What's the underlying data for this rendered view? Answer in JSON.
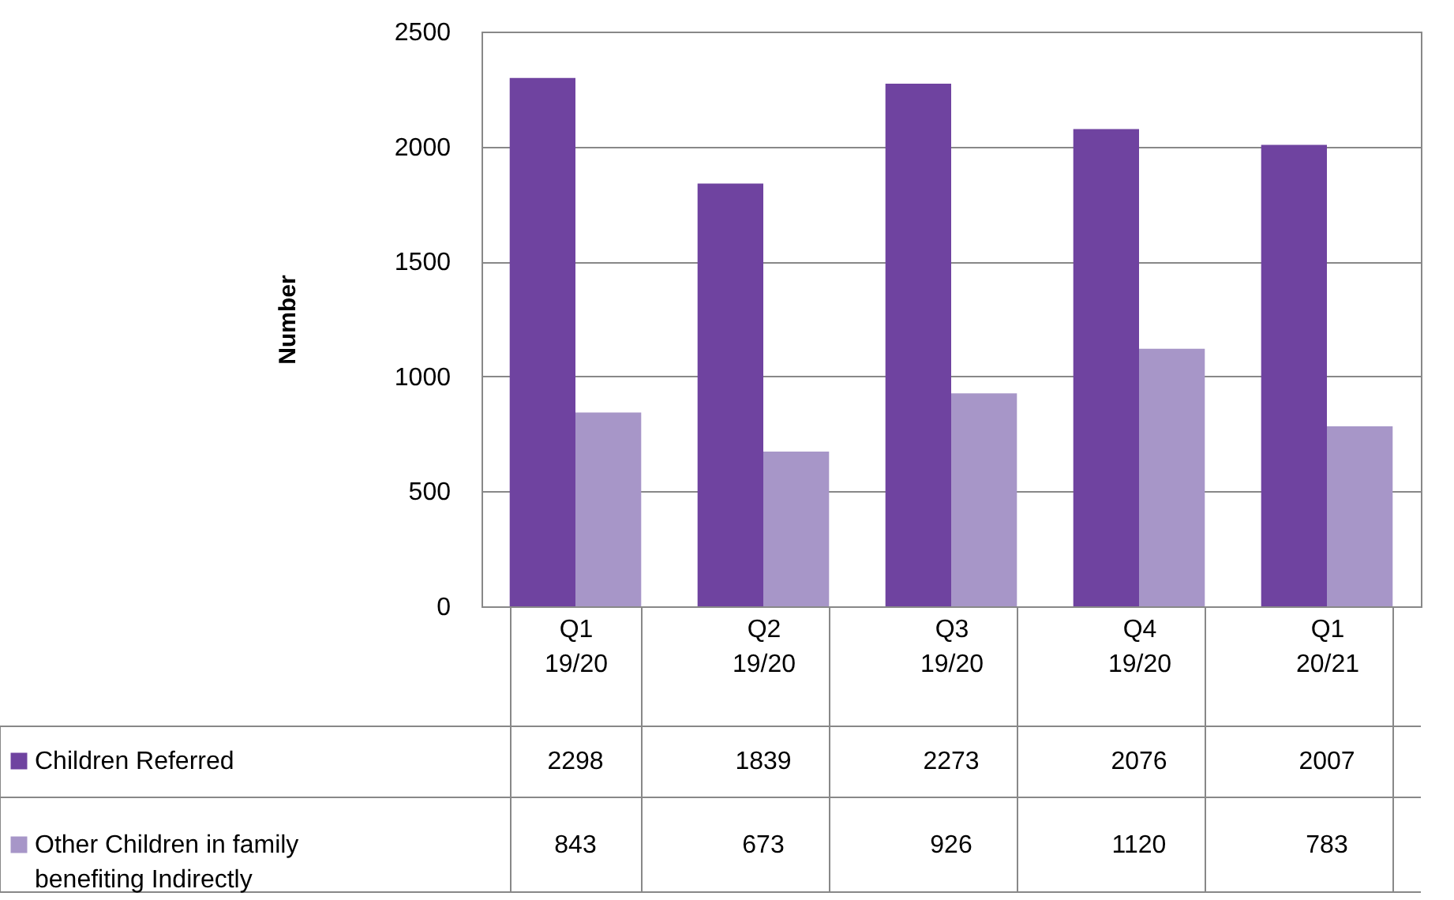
{
  "chart_data": {
    "type": "bar",
    "ylabel": "Number",
    "categories": [
      "Q1 19/20",
      "Q2 19/20",
      "Q3 19/20",
      "Q4 19/20",
      "Q1 20/21"
    ],
    "series": [
      {
        "name": "Children Referred",
        "color": "#6f43a0",
        "values": [
          2298,
          1839,
          2273,
          2076,
          2007
        ]
      },
      {
        "name": "Other Children in family benefiting Indirectly",
        "color": "#a796c8",
        "values": [
          843,
          673,
          926,
          1120,
          783
        ]
      }
    ],
    "ylim": [
      0,
      2500
    ],
    "yticks": [
      0,
      500,
      1000,
      1500,
      2000,
      2500
    ],
    "grid": "y",
    "legend": "bottom",
    "data_labels": true
  }
}
